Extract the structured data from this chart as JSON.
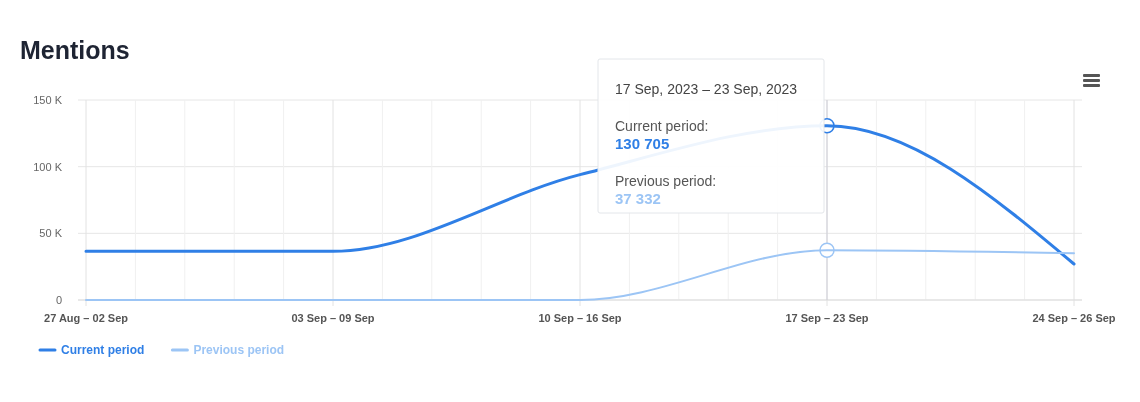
{
  "chart_data": {
    "type": "line",
    "title": "Mentions",
    "categories": [
      "27 Aug – 02 Sep",
      "03 Sep – 09 Sep",
      "10 Sep – 16 Sep",
      "17 Sep – 23 Sep",
      "24 Sep – 26 Sep"
    ],
    "series": [
      {
        "name": "Current period",
        "color": "#2f7fe6",
        "values": [
          36500,
          36500,
          94000,
          130705,
          27000
        ]
      },
      {
        "name": "Previous period",
        "color": "#9cc5f5",
        "values": [
          0,
          0,
          0,
          37332,
          35000
        ]
      }
    ],
    "ylim": [
      0,
      150000
    ],
    "yticks": [
      0,
      {
        "value": 50000,
        "label": "50 K"
      },
      {
        "value": 100000,
        "label": "100 K"
      },
      {
        "value": 150000,
        "label": "150 K"
      }
    ],
    "grid": true,
    "legend": "bottom left",
    "marker": "none",
    "line_style": "solid",
    "ref_lines": [
      {
        "axis": "x",
        "value": "17 Sep – 23 Sep",
        "color": "#cfcfd8"
      }
    ],
    "annotations": [
      "17 Sep, 2023 – 23 Sep, 2023",
      "Current period:",
      "130 705",
      "Previous period:",
      "37 332"
    ]
  }
}
